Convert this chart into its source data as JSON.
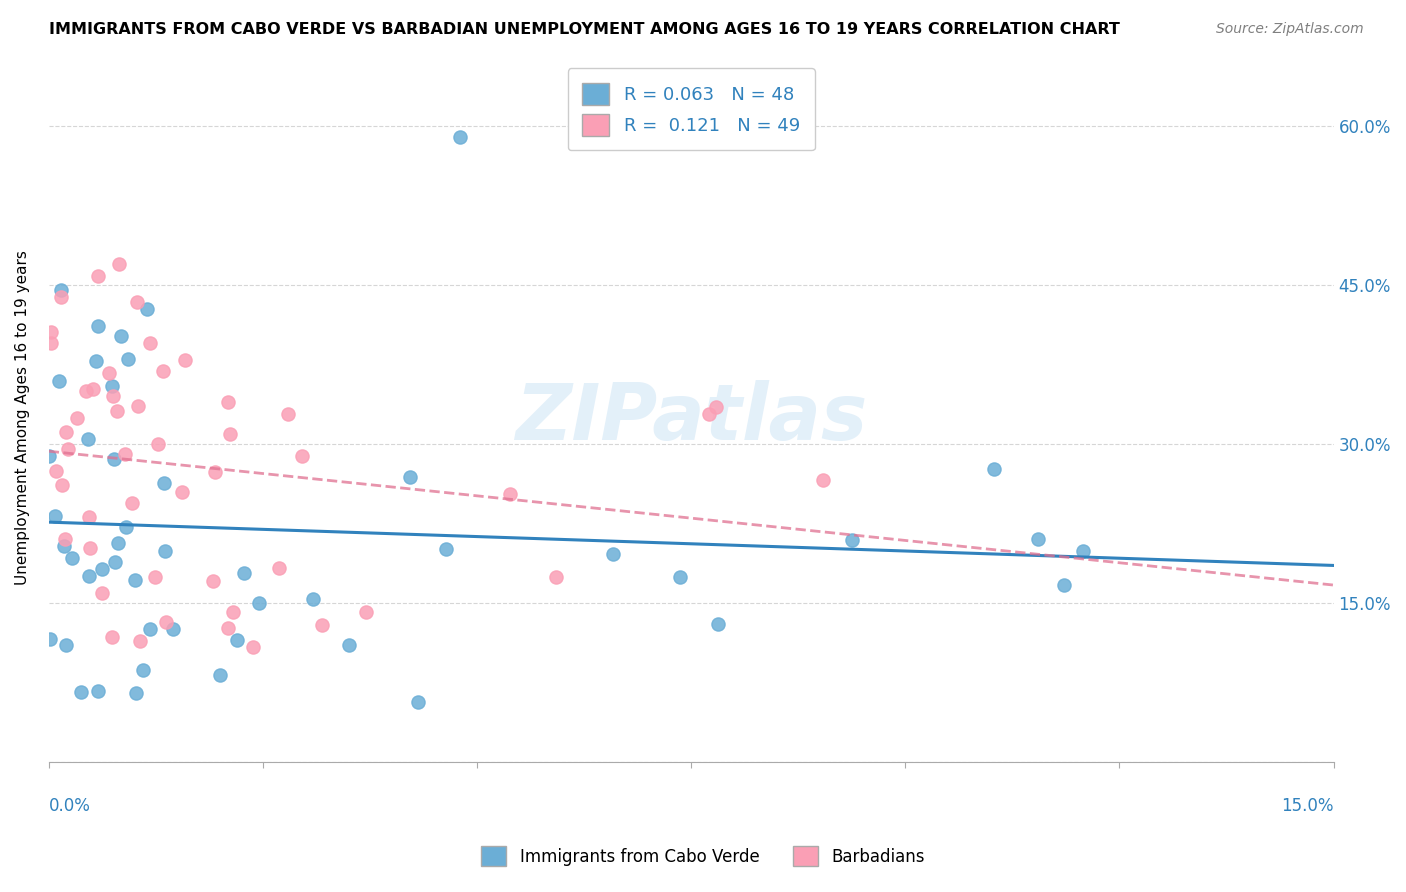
{
  "title": "IMMIGRANTS FROM CABO VERDE VS BARBADIAN UNEMPLOYMENT AMONG AGES 16 TO 19 YEARS CORRELATION CHART",
  "source": "Source: ZipAtlas.com",
  "ylabel": "Unemployment Among Ages 16 to 19 years",
  "legend_label1": "Immigrants from Cabo Verde",
  "legend_label2": "Barbadians",
  "R1": "0.063",
  "N1": "48",
  "R2": "0.121",
  "N2": "49",
  "blue_color": "#6baed6",
  "pink_color": "#fa9fb5",
  "trend_blue": "#3182bd",
  "trend_pink": "#e07090",
  "watermark": "ZIPatlas",
  "xlim": [
    0.0,
    0.15
  ],
  "ylim": [
    0.0,
    0.65
  ]
}
